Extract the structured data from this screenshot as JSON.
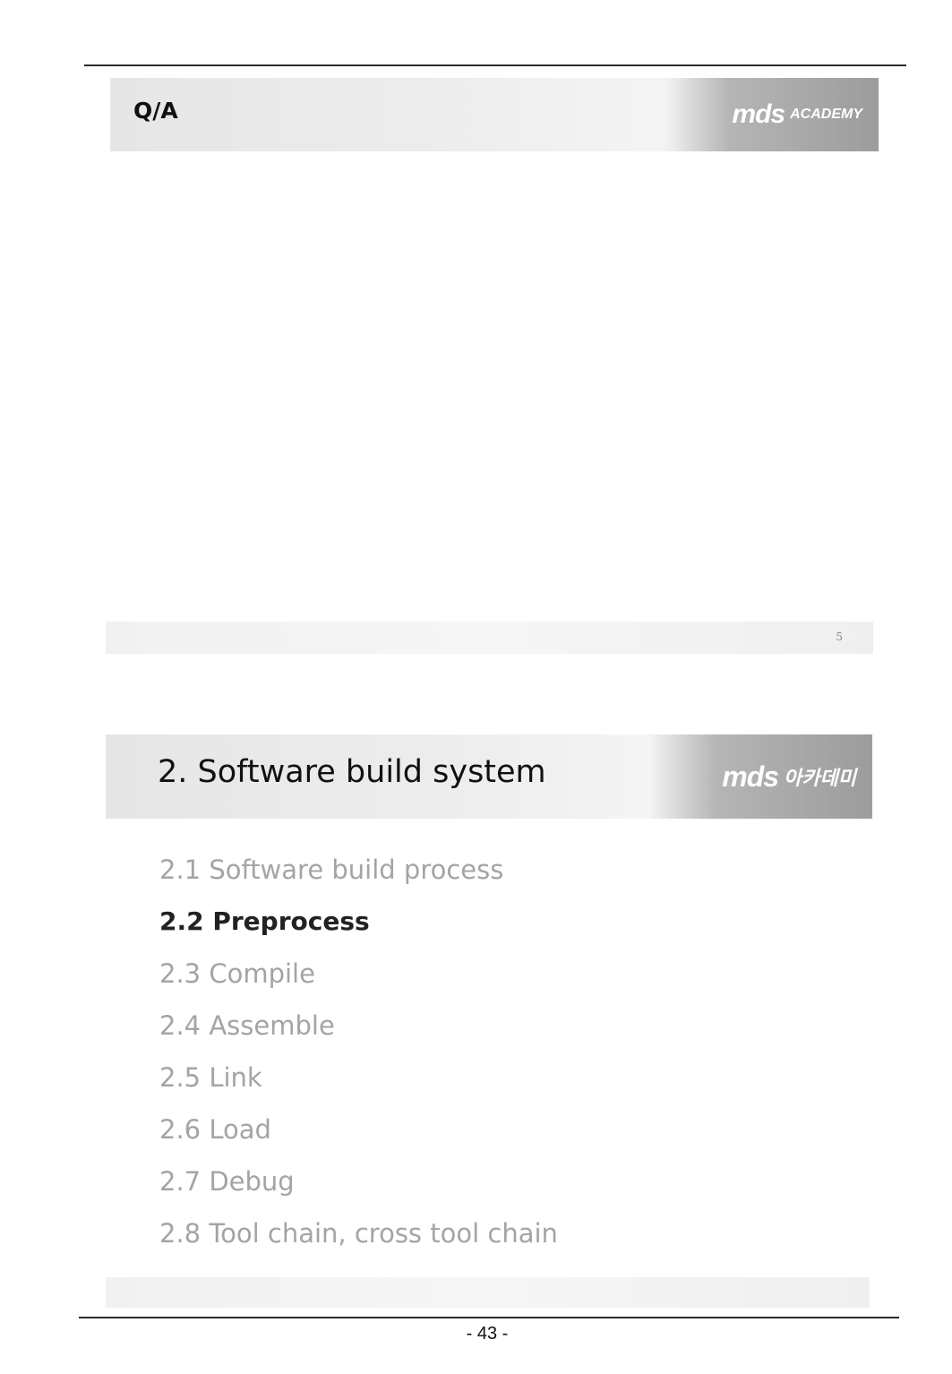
{
  "slide1": {
    "title": "Q/A",
    "logo": {
      "main": "mds",
      "sub": "ACADEMY"
    },
    "slide_number": "5"
  },
  "slide2": {
    "title": "2. Software build system",
    "logo": {
      "main": "mds",
      "sub": "아카데미"
    },
    "toc": [
      {
        "label": "2.1 Software build process",
        "active": false
      },
      {
        "label": "2.2 Preprocess",
        "active": true
      },
      {
        "label": "2.3 Compile",
        "active": false
      },
      {
        "label": "2.4 Assemble",
        "active": false
      },
      {
        "label": "2.5 Link",
        "active": false
      },
      {
        "label": "2.6 Load",
        "active": false
      },
      {
        "label": "2.7 Debug",
        "active": false
      },
      {
        "label": "2.8 Tool chain, cross tool chain",
        "active": false
      }
    ]
  },
  "page_number": "- 43 -"
}
